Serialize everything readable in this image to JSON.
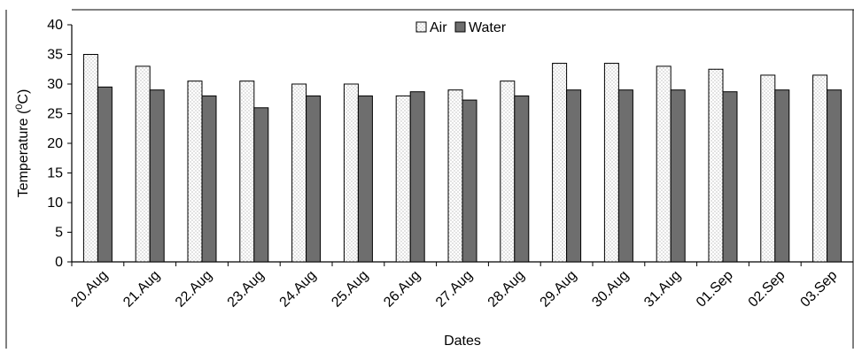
{
  "chart_data": {
    "type": "bar",
    "title": "",
    "xlabel": "Dates",
    "ylabel_main": "Temperature (",
    "ylabel_sup": "0",
    "ylabel_end": "C)",
    "ylim": [
      0,
      40
    ],
    "yticks": [
      0,
      5,
      10,
      15,
      20,
      25,
      30,
      35,
      40
    ],
    "grid": false,
    "legend_position": "top-center",
    "categories": [
      "20.Aug",
      "21.Aug",
      "22.Aug",
      "23.Aug",
      "24.Aug",
      "25.Aug",
      "26.Aug",
      "27.Aug",
      "28.Aug",
      "29.Aug",
      "30.Aug",
      "31.Aug",
      "01.Sep",
      "02.Sep",
      "03.Sep"
    ],
    "series": [
      {
        "name": "Air",
        "color": "#ffffff",
        "pattern": "dotted",
        "values": [
          35,
          33,
          30.5,
          30.5,
          30,
          30,
          28,
          29,
          30.5,
          33.5,
          33.5,
          33,
          32.5,
          31.5,
          31.5
        ]
      },
      {
        "name": "Water",
        "color": "#6e6e6e",
        "pattern": "solid",
        "values": [
          29.5,
          29,
          28,
          26,
          28,
          28,
          28.7,
          27.3,
          28,
          29,
          29,
          29,
          28.7,
          29,
          29
        ]
      }
    ]
  }
}
